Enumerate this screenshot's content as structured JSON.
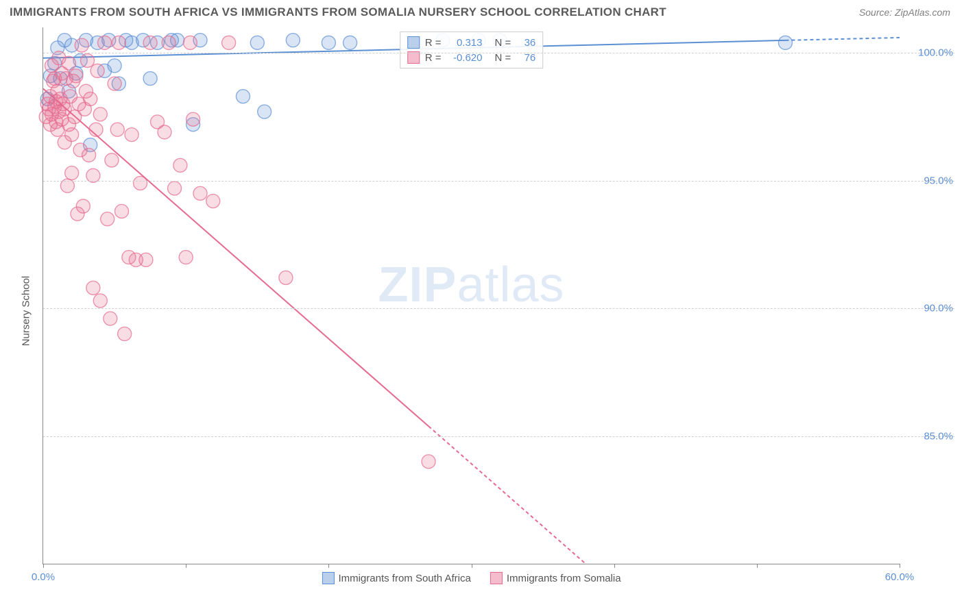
{
  "header": {
    "title": "IMMIGRANTS FROM SOUTH AFRICA VS IMMIGRANTS FROM SOMALIA NURSERY SCHOOL CORRELATION CHART",
    "source": "Source: ZipAtlas.com"
  },
  "chart": {
    "type": "scatter",
    "y_axis_label": "Nursery School",
    "watermark_bold": "ZIP",
    "watermark_rest": "atlas",
    "xlim": [
      0,
      60
    ],
    "ylim": [
      80,
      101
    ],
    "x_ticks": [
      0,
      10,
      20,
      30,
      40,
      50,
      60
    ],
    "x_tick_labels": {
      "0": "0.0%",
      "60": "60.0%"
    },
    "y_gridlines": [
      85,
      90,
      95,
      100
    ],
    "y_tick_labels": [
      "85.0%",
      "90.0%",
      "95.0%",
      "100.0%"
    ],
    "background_color": "#ffffff",
    "grid_color": "#d0d0d0",
    "axis_color": "#888888",
    "tick_label_color": "#5b8fd4",
    "marker_radius": 10,
    "marker_opacity": 0.42,
    "marker_stroke_opacity": 0.7,
    "line_width": 2,
    "dash_pattern": "5,4",
    "series": [
      {
        "name": "Immigrants from South Africa",
        "color": "#5b8fd4",
        "fill": "#b9cfeb",
        "stats": {
          "R": "0.313",
          "N": "36"
        },
        "regression": {
          "x1": 0,
          "y1": 99.8,
          "x2": 60,
          "y2": 100.6,
          "solid_until_x": 52
        },
        "points": [
          [
            0.3,
            98.2
          ],
          [
            0.5,
            99.1
          ],
          [
            0.8,
            99.6
          ],
          [
            1.0,
            100.2
          ],
          [
            1.2,
            99.0
          ],
          [
            1.5,
            100.5
          ],
          [
            1.8,
            98.5
          ],
          [
            2.0,
            100.3
          ],
          [
            2.3,
            99.2
          ],
          [
            2.6,
            99.7
          ],
          [
            3.0,
            100.5
          ],
          [
            3.3,
            96.4
          ],
          [
            3.8,
            100.4
          ],
          [
            4.3,
            99.3
          ],
          [
            4.6,
            100.5
          ],
          [
            5.0,
            99.5
          ],
          [
            5.3,
            98.8
          ],
          [
            5.8,
            100.5
          ],
          [
            6.2,
            100.4
          ],
          [
            7.0,
            100.5
          ],
          [
            7.5,
            99.0
          ],
          [
            8.0,
            100.4
          ],
          [
            9.0,
            100.5
          ],
          [
            9.4,
            100.5
          ],
          [
            10.5,
            97.2
          ],
          [
            11.0,
            100.5
          ],
          [
            14.0,
            98.3
          ],
          [
            15.0,
            100.4
          ],
          [
            15.5,
            97.7
          ],
          [
            17.5,
            100.5
          ],
          [
            20.0,
            100.4
          ],
          [
            21.5,
            100.4
          ],
          [
            28.0,
            100.5
          ],
          [
            30.5,
            100.5
          ],
          [
            32.0,
            100.5
          ],
          [
            52.0,
            100.4
          ]
        ]
      },
      {
        "name": "Immigrants from Somalia",
        "color": "#e66a8f",
        "fill": "#f5bccd",
        "stats": {
          "R": "-0.620",
          "N": "76"
        },
        "regression": {
          "x1": 0,
          "y1": 98.6,
          "x2": 38,
          "y2": 80.0,
          "solid_until_x": 27
        },
        "points": [
          [
            0.2,
            97.5
          ],
          [
            0.3,
            98.0
          ],
          [
            0.4,
            97.8
          ],
          [
            0.5,
            97.2
          ],
          [
            0.5,
            98.3
          ],
          [
            0.6,
            97.6
          ],
          [
            0.6,
            99.5
          ],
          [
            0.7,
            98.9
          ],
          [
            0.8,
            97.9
          ],
          [
            0.8,
            99.0
          ],
          [
            0.9,
            97.3
          ],
          [
            0.9,
            98.1
          ],
          [
            1.0,
            97.0
          ],
          [
            1.0,
            98.5
          ],
          [
            1.1,
            99.8
          ],
          [
            1.1,
            97.7
          ],
          [
            1.2,
            98.2
          ],
          [
            1.3,
            97.4
          ],
          [
            1.3,
            99.2
          ],
          [
            1.4,
            98.0
          ],
          [
            1.5,
            96.5
          ],
          [
            1.5,
            97.8
          ],
          [
            1.6,
            99.0
          ],
          [
            1.7,
            94.8
          ],
          [
            1.8,
            97.2
          ],
          [
            1.8,
            99.6
          ],
          [
            1.9,
            98.3
          ],
          [
            2.0,
            96.8
          ],
          [
            2.0,
            95.3
          ],
          [
            2.1,
            98.9
          ],
          [
            2.2,
            97.5
          ],
          [
            2.3,
            99.1
          ],
          [
            2.4,
            93.7
          ],
          [
            2.5,
            98.0
          ],
          [
            2.6,
            96.2
          ],
          [
            2.7,
            100.3
          ],
          [
            2.8,
            94.0
          ],
          [
            2.9,
            97.8
          ],
          [
            3.0,
            98.5
          ],
          [
            3.1,
            99.7
          ],
          [
            3.2,
            96.0
          ],
          [
            3.3,
            98.2
          ],
          [
            3.5,
            95.2
          ],
          [
            3.5,
            90.8
          ],
          [
            3.7,
            97.0
          ],
          [
            3.8,
            99.3
          ],
          [
            4.0,
            90.3
          ],
          [
            4.0,
            97.6
          ],
          [
            4.3,
            100.4
          ],
          [
            4.5,
            93.5
          ],
          [
            4.7,
            89.6
          ],
          [
            4.8,
            95.8
          ],
          [
            5.0,
            98.8
          ],
          [
            5.2,
            97.0
          ],
          [
            5.3,
            100.4
          ],
          [
            5.5,
            93.8
          ],
          [
            5.7,
            89.0
          ],
          [
            6.0,
            92.0
          ],
          [
            6.2,
            96.8
          ],
          [
            6.5,
            91.9
          ],
          [
            6.8,
            94.9
          ],
          [
            7.2,
            91.9
          ],
          [
            7.5,
            100.4
          ],
          [
            8.0,
            97.3
          ],
          [
            8.5,
            96.9
          ],
          [
            8.8,
            100.4
          ],
          [
            9.2,
            94.7
          ],
          [
            9.6,
            95.6
          ],
          [
            10.0,
            92.0
          ],
          [
            10.3,
            100.4
          ],
          [
            10.5,
            97.4
          ],
          [
            11.0,
            94.5
          ],
          [
            11.9,
            94.2
          ],
          [
            13.0,
            100.4
          ],
          [
            17.0,
            91.2
          ],
          [
            27.0,
            84.0
          ]
        ]
      }
    ],
    "legend": {
      "stats_labels": {
        "R_prefix": "R =",
        "N_prefix": "N ="
      }
    }
  }
}
